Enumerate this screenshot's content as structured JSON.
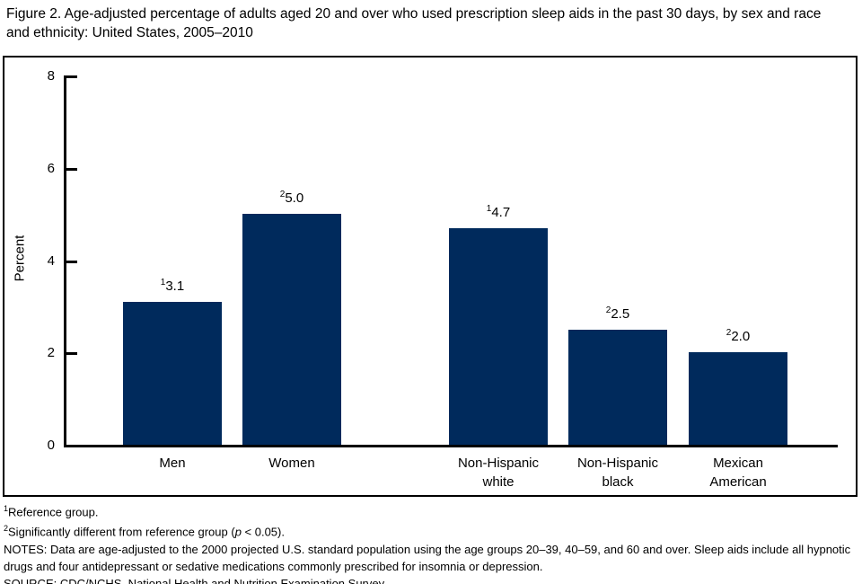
{
  "title": "Figure 2. Age-adjusted percentage of adults aged 20 and over who used prescription sleep aids in the past 30 days, by sex and race and ethnicity: United States, 2005–2010",
  "chart_data": {
    "type": "bar",
    "title": "Age-adjusted percentage of adults aged 20 and over who used prescription sleep aids in the past 30 days, by sex and race and ethnicity: United States, 2005–2010",
    "xlabel": "",
    "ylabel": "Percent",
    "ylim": [
      0,
      8
    ],
    "yticks": [
      0,
      2,
      4,
      6,
      8
    ],
    "grid": false,
    "legend": "none",
    "bar_color": "#002a5c",
    "categories": [
      "Men",
      "Women",
      "Non-Hispanic white",
      "Non-Hispanic black",
      "Mexican American"
    ],
    "values": [
      3.1,
      5.0,
      4.7,
      2.5,
      2.0
    ],
    "bars": [
      {
        "label_lines": [
          "Men"
        ],
        "value": 3.1,
        "display": "3.1",
        "marker": "1"
      },
      {
        "label_lines": [
          "Women"
        ],
        "value": 5.0,
        "display": "5.0",
        "marker": "2"
      },
      {
        "label_lines": [
          "Non-Hispanic",
          "white"
        ],
        "value": 4.7,
        "display": "4.7",
        "marker": "1"
      },
      {
        "label_lines": [
          "Non-Hispanic",
          "black"
        ],
        "value": 2.5,
        "display": "2.5",
        "marker": "2"
      },
      {
        "label_lines": [
          "Mexican",
          "American"
        ],
        "value": 2.0,
        "display": "2.0",
        "marker": "2"
      }
    ]
  },
  "footnotes": [
    {
      "marker": "1",
      "segments": [
        {
          "text": "Reference group."
        }
      ]
    },
    {
      "marker": "2",
      "segments": [
        {
          "text": "Significantly different from reference group ("
        },
        {
          "text": "p",
          "italic": true
        },
        {
          "text": " < 0.05)."
        }
      ]
    },
    {
      "segments": [
        {
          "text": "NOTES: Data are age-adjusted to the 2000 projected U.S. standard population using the age groups 20–39, 40–59, and 60 and over. Sleep aids include all hypnotic drugs and four antidepressant or sedative medications commonly prescribed for insomnia or depression."
        }
      ]
    },
    {
      "segments": [
        {
          "text": "SOURCE: CDC/NCHS, National Health and Nutrition Examination Survey."
        }
      ]
    }
  ]
}
